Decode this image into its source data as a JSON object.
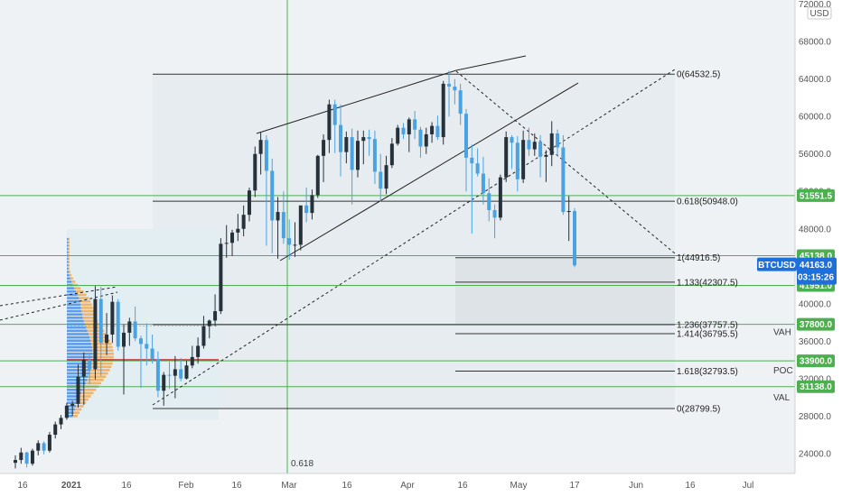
{
  "symbol_badge": {
    "name": "BTCUSD",
    "price": "44163.0",
    "countdown": "03:15:26",
    "color": "#1e6fd9"
  },
  "currency_label": "USD",
  "chart_data": {
    "type": "candlestick",
    "y_axis": {
      "ticks": [
        24000,
        28000,
        32000,
        36000,
        40000,
        44000,
        48000,
        52000,
        56000,
        60000,
        64000,
        68000,
        72000
      ],
      "tick_labels": [
        "24000.0",
        "28000.0",
        "32000.0",
        "36000.0",
        "40000.0",
        "44000.0",
        "48000.0",
        "52000.0",
        "56000.0",
        "60000.0",
        "64000.0",
        "68000.0",
        "72000.0"
      ],
      "range": [
        21500,
        72500
      ]
    },
    "x_axis": {
      "labels": [
        "16",
        "2021",
        "16",
        "Feb",
        "16",
        "Mar",
        "16",
        "Apr",
        "16",
        "May",
        "17",
        "Jun",
        "16",
        "Jul"
      ]
    },
    "price_levels": [
      {
        "value": 51551.5,
        "label": "51551.5",
        "color": "#4caf50"
      },
      {
        "value": 45138.0,
        "label": "45138.0",
        "color": "#4caf50"
      },
      {
        "value": 41951.0,
        "label": "41951.0",
        "color": "#4caf50"
      },
      {
        "value": 37800.0,
        "label": "37800.0",
        "color": "#4caf50"
      },
      {
        "value": 33900.0,
        "label": "33900.0",
        "color": "#4caf50"
      },
      {
        "value": 31138.0,
        "label": "31138.0",
        "color": "#4caf50"
      }
    ],
    "profile_labels": [
      {
        "text": "VAH",
        "value": 37000,
        "color": "#4caf50"
      },
      {
        "text": "POC",
        "value": 32900,
        "color": "#2196f3"
      },
      {
        "text": "VAL",
        "value": 30000,
        "color": "#4caf50"
      }
    ],
    "fib_levels": [
      {
        "label": "0(64532.5)",
        "value": 64532.5
      },
      {
        "label": "0.618(50948.0)",
        "value": 50948.0
      },
      {
        "label": "1(44916.5)",
        "value": 44916.5
      },
      {
        "label": "1.133(42307.5)",
        "value": 42307.5
      },
      {
        "label": "1.236(37757.5)",
        "value": 37757.5
      },
      {
        "label": "1.414(36795.5)",
        "value": 36795.5
      },
      {
        "label": "1.618(32793.5)",
        "value": 32793.5
      },
      {
        "label": "0(28799.5)",
        "value": 28799.5
      }
    ],
    "vertical_line_label": "0.618",
    "candles": [
      [
        23000,
        23800,
        22400,
        23300
      ],
      [
        23300,
        24600,
        22900,
        24100
      ],
      [
        24100,
        24200,
        22500,
        22900
      ],
      [
        22900,
        24500,
        22700,
        24300
      ],
      [
        24300,
        25400,
        23800,
        25100
      ],
      [
        25100,
        25300,
        23900,
        24300
      ],
      [
        24300,
        26300,
        24100,
        26000
      ],
      [
        26000,
        27400,
        25600,
        27100
      ],
      [
        27100,
        28100,
        26600,
        27800
      ],
      [
        27800,
        29400,
        27600,
        29100
      ],
      [
        29100,
        29600,
        28000,
        29300
      ],
      [
        29300,
        33500,
        28900,
        32200
      ],
      [
        32200,
        34800,
        29200,
        34000
      ],
      [
        34000,
        34500,
        31400,
        33000
      ],
      [
        33000,
        41900,
        31900,
        40500
      ],
      [
        40500,
        41800,
        32300,
        35800
      ],
      [
        35800,
        39000,
        34500,
        36700
      ],
      [
        36700,
        40900,
        35800,
        40200
      ],
      [
        40200,
        40500,
        35000,
        35400
      ],
      [
        35400,
        37800,
        30300,
        36900
      ],
      [
        36900,
        38500,
        35500,
        38100
      ],
      [
        38100,
        39700,
        36000,
        36300
      ],
      [
        36300,
        36600,
        31000,
        35700
      ],
      [
        35700,
        37900,
        33400,
        35200
      ],
      [
        35200,
        36700,
        33600,
        34100
      ],
      [
        34100,
        34900,
        30000,
        30700
      ],
      [
        30700,
        32700,
        29100,
        32400
      ],
      [
        32400,
        33800,
        30900,
        32300
      ],
      [
        32300,
        34400,
        29900,
        33000
      ],
      [
        33000,
        34200,
        31700,
        32000
      ],
      [
        32000,
        33900,
        31900,
        33400
      ],
      [
        33400,
        35500,
        33100,
        34300
      ],
      [
        34300,
        36400,
        33600,
        35500
      ],
      [
        35500,
        38700,
        35200,
        37600
      ],
      [
        37600,
        38300,
        36300,
        38200
      ],
      [
        38200,
        41000,
        37600,
        39200
      ],
      [
        39200,
        47000,
        38900,
        46400
      ],
      [
        46400,
        48400,
        44900,
        46500
      ],
      [
        46500,
        47900,
        45100,
        47600
      ],
      [
        47600,
        49600,
        46700,
        48000
      ],
      [
        48000,
        50500,
        47200,
        49500
      ],
      [
        49500,
        52400,
        48800,
        52100
      ],
      [
        52100,
        56800,
        51400,
        56000
      ],
      [
        56000,
        58300,
        53800,
        57500
      ],
      [
        57500,
        58000,
        46200,
        54200
      ],
      [
        54200,
        55500,
        45400,
        48900
      ],
      [
        48900,
        51400,
        44800,
        49800
      ],
      [
        49800,
        52000,
        46400,
        47000
      ],
      [
        47000,
        49000,
        44700,
        46300
      ],
      [
        46300,
        48700,
        45000,
        46300
      ],
      [
        46300,
        50500,
        45700,
        50500
      ],
      [
        50500,
        52400,
        48700,
        49700
      ],
      [
        49700,
        52200,
        49000,
        51600
      ],
      [
        51600,
        55900,
        51300,
        55800
      ],
      [
        55800,
        58100,
        53000,
        57500
      ],
      [
        57500,
        61800,
        56100,
        61300
      ],
      [
        61300,
        61800,
        56100,
        59100
      ],
      [
        59100,
        61300,
        53600,
        56200
      ],
      [
        56200,
        58400,
        55000,
        57800
      ],
      [
        57800,
        58700,
        50600,
        54300
      ],
      [
        54300,
        58500,
        53500,
        57400
      ],
      [
        57400,
        58500,
        54900,
        57800
      ],
      [
        57800,
        58600,
        55800,
        57600
      ],
      [
        57600,
        58500,
        52800,
        54100
      ],
      [
        54100,
        56000,
        50900,
        52300
      ],
      [
        52300,
        55800,
        51700,
        54800
      ],
      [
        54800,
        57700,
        54500,
        57100
      ],
      [
        57100,
        59100,
        56900,
        58800
      ],
      [
        58800,
        59300,
        57600,
        58100
      ],
      [
        58100,
        59900,
        56200,
        59700
      ],
      [
        59700,
        60600,
        57600,
        58600
      ],
      [
        58600,
        58900,
        55600,
        56800
      ],
      [
        56800,
        58800,
        56000,
        58100
      ],
      [
        58100,
        59400,
        57200,
        59000
      ],
      [
        59000,
        60100,
        57500,
        57800
      ],
      [
        57800,
        63800,
        57000,
        63500
      ],
      [
        63500,
        64900,
        60000,
        63200
      ],
      [
        63200,
        64000,
        61300,
        62800
      ],
      [
        62800,
        63500,
        59100,
        60300
      ],
      [
        60300,
        60800,
        52000,
        55600
      ],
      [
        55600,
        57000,
        47500,
        55000
      ],
      [
        55000,
        56600,
        53600,
        53900
      ],
      [
        53900,
        55700,
        50600,
        51800
      ],
      [
        51800,
        53400,
        48800,
        50000
      ],
      [
        50000,
        50600,
        47000,
        49200
      ],
      [
        49200,
        53800,
        48900,
        53500
      ],
      [
        53500,
        58400,
        53000,
        57800
      ],
      [
        57800,
        58000,
        54400,
        57200
      ],
      [
        57200,
        57900,
        52000,
        53300
      ],
      [
        53300,
        58500,
        52900,
        57500
      ],
      [
        57500,
        58800,
        55800,
        56500
      ],
      [
        56500,
        58200,
        55800,
        57300
      ],
      [
        57300,
        58000,
        53500,
        55700
      ],
      [
        55700,
        56400,
        53000,
        55900
      ],
      [
        55900,
        59500,
        54700,
        58200
      ],
      [
        58200,
        58600,
        55800,
        56700
      ],
      [
        56700,
        58000,
        49500,
        49800
      ],
      [
        49800,
        51500,
        46700,
        49900
      ],
      [
        49900,
        50200,
        43900,
        44100
      ]
    ],
    "volume_profile_note": "volume profile histogram on left"
  }
}
